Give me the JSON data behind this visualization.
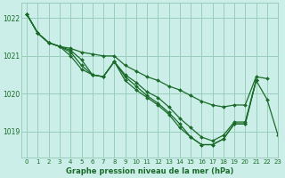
{
  "title": "Graphe pression niveau de la mer (hPa)",
  "bg_color": "#cceee8",
  "grid_color": "#99ccbb",
  "line_color": "#1a6b2a",
  "xlim": [
    -0.5,
    23
  ],
  "ylim": [
    1018.3,
    1022.4
  ],
  "yticks": [
    1019,
    1020,
    1021,
    1022
  ],
  "xtick_labels": [
    "0",
    "1",
    "2",
    "3",
    "4",
    "5",
    "6",
    "7",
    "8",
    "9",
    "10",
    "11",
    "12",
    "13",
    "14",
    "15",
    "16",
    "17",
    "18",
    "19",
    "20",
    "21",
    "22",
    "23"
  ],
  "series": [
    {
      "x": [
        0,
        1,
        2,
        3,
        4,
        5,
        6,
        7,
        8,
        9,
        10,
        11,
        12,
        13,
        14,
        15,
        16,
        17,
        18,
        19,
        20,
        21,
        22
      ],
      "y": [
        1022.1,
        1021.6,
        1021.35,
        1021.25,
        1021.2,
        1021.1,
        1021.05,
        1021.0,
        1021.0,
        1020.75,
        1020.6,
        1020.45,
        1020.35,
        1020.2,
        1020.1,
        1019.95,
        1019.8,
        1019.7,
        1019.65,
        1019.7,
        1019.7,
        1020.45,
        1020.4
      ]
    },
    {
      "x": [
        0,
        1,
        2,
        3,
        4,
        5,
        6,
        7,
        8,
        9,
        10,
        11,
        12,
        13,
        14,
        15,
        16,
        17,
        18,
        19,
        20,
        21
      ],
      "y": [
        1022.1,
        1021.6,
        1021.35,
        1021.25,
        1021.15,
        1020.9,
        1020.5,
        1020.45,
        1020.85,
        1020.5,
        1020.3,
        1020.05,
        1019.9,
        1019.65,
        1019.35,
        1019.1,
        1018.85,
        1018.75,
        1018.9,
        1019.25,
        1019.25,
        1020.35
      ]
    },
    {
      "x": [
        0,
        1,
        2,
        3,
        4,
        5,
        6,
        7,
        8,
        9,
        10,
        11,
        12,
        13,
        14,
        15,
        16,
        17,
        18,
        19,
        20,
        21
      ],
      "y": [
        1022.1,
        1021.6,
        1021.35,
        1021.25,
        1021.1,
        1020.75,
        1020.5,
        1020.45,
        1020.85,
        1020.45,
        1020.2,
        1019.95,
        1019.75,
        1019.5,
        1019.2,
        1018.85,
        1018.65,
        1018.65,
        1018.8,
        1019.2,
        1019.2,
        1020.35
      ]
    },
    {
      "x": [
        0,
        1,
        2,
        3,
        4,
        5,
        6,
        7,
        8,
        9,
        10,
        11,
        12,
        13,
        14,
        15,
        16,
        17,
        18,
        19,
        20,
        21
      ],
      "y": [
        1022.1,
        1021.6,
        1021.35,
        1021.25,
        1021.0,
        1020.65,
        1020.5,
        1020.45,
        1020.85,
        1020.35,
        1020.1,
        1019.9,
        1019.7,
        1019.45,
        1019.1,
        1018.85,
        1018.65,
        1018.65,
        1018.8,
        1019.2,
        1019.2,
        1020.35
      ]
    },
    {
      "x": [
        21,
        22,
        23
      ],
      "y": [
        1020.35,
        1019.85,
        1018.9
      ]
    }
  ]
}
